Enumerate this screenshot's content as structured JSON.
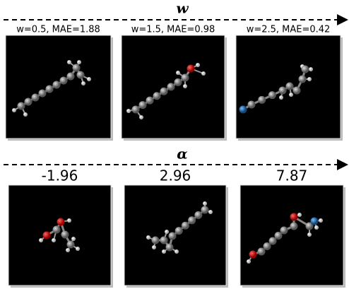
{
  "sections": [
    {
      "title": "w",
      "panels": [
        {
          "label": "w=0.5, MAE=1.88"
        },
        {
          "label": "w=1.5, MAE=0.98"
        },
        {
          "label": "w=2.5, MAE=0.42"
        }
      ]
    },
    {
      "title": "α",
      "panels": [
        {
          "label": "-1.96"
        },
        {
          "label": "2.96"
        },
        {
          "label": "7.87"
        }
      ]
    }
  ]
}
